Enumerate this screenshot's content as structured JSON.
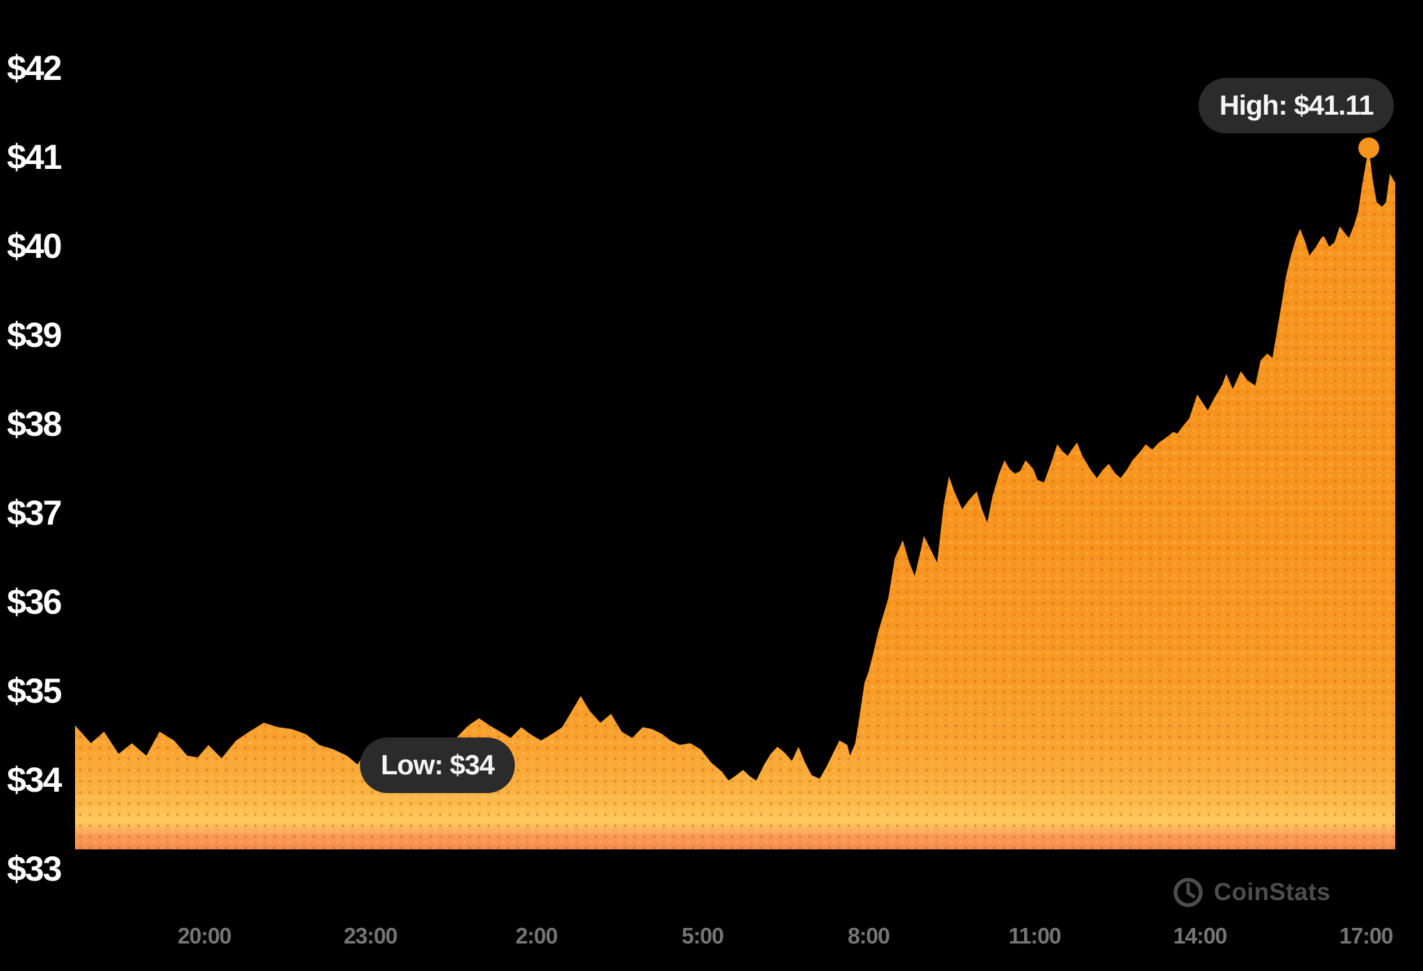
{
  "chart_data": {
    "type": "area",
    "title": "",
    "grid": "off",
    "legend": "off",
    "y_axis_range": [
      33,
      42
    ],
    "y_ticks": [
      "$42",
      "$41",
      "$40",
      "$39",
      "$38",
      "$37",
      "$36",
      "$35",
      "$34",
      "$33"
    ],
    "y_tick_values": [
      42,
      41,
      40,
      39,
      38,
      37,
      36,
      35,
      34,
      33
    ],
    "x_ticks": [
      "20:00",
      "23:00",
      "2:00",
      "5:00",
      "8:00",
      "11:00",
      "14:00",
      "17:00"
    ],
    "high_label": "High: $41.11",
    "high_value": 41.11,
    "low_label": "Low: $34",
    "low_value": 34,
    "series": [
      {
        "name": "price",
        "color": "#F7941E",
        "points": [
          [
            0.0,
            34.62
          ],
          [
            0.012,
            34.42
          ],
          [
            0.022,
            34.55
          ],
          [
            0.033,
            34.3
          ],
          [
            0.043,
            34.42
          ],
          [
            0.054,
            34.28
          ],
          [
            0.064,
            34.55
          ],
          [
            0.075,
            34.45
          ],
          [
            0.085,
            34.28
          ],
          [
            0.093,
            34.26
          ],
          [
            0.101,
            34.4
          ],
          [
            0.111,
            34.25
          ],
          [
            0.122,
            34.45
          ],
          [
            0.132,
            34.55
          ],
          [
            0.143,
            34.65
          ],
          [
            0.154,
            34.6
          ],
          [
            0.164,
            34.58
          ],
          [
            0.175,
            34.52
          ],
          [
            0.185,
            34.4
          ],
          [
            0.196,
            34.35
          ],
          [
            0.206,
            34.28
          ],
          [
            0.214,
            34.18
          ],
          [
            0.219,
            34.3
          ],
          [
            0.227,
            34.05
          ],
          [
            0.235,
            34.1
          ],
          [
            0.243,
            34.0
          ],
          [
            0.251,
            34.12
          ],
          [
            0.259,
            34.06
          ],
          [
            0.267,
            34.18
          ],
          [
            0.274,
            34.26
          ],
          [
            0.282,
            34.35
          ],
          [
            0.29,
            34.5
          ],
          [
            0.298,
            34.62
          ],
          [
            0.306,
            34.7
          ],
          [
            0.314,
            34.62
          ],
          [
            0.322,
            34.55
          ],
          [
            0.33,
            34.48
          ],
          [
            0.338,
            34.6
          ],
          [
            0.345,
            34.52
          ],
          [
            0.353,
            34.45
          ],
          [
            0.361,
            34.52
          ],
          [
            0.369,
            34.6
          ],
          [
            0.377,
            34.8
          ],
          [
            0.383,
            34.95
          ],
          [
            0.39,
            34.78
          ],
          [
            0.398,
            34.65
          ],
          [
            0.406,
            34.75
          ],
          [
            0.414,
            34.55
          ],
          [
            0.422,
            34.48
          ],
          [
            0.43,
            34.6
          ],
          [
            0.437,
            34.58
          ],
          [
            0.445,
            34.52
          ],
          [
            0.451,
            34.45
          ],
          [
            0.458,
            34.4
          ],
          [
            0.466,
            34.42
          ],
          [
            0.474,
            34.35
          ],
          [
            0.482,
            34.2
          ],
          [
            0.49,
            34.1
          ],
          [
            0.495,
            34.0
          ],
          [
            0.501,
            34.06
          ],
          [
            0.506,
            34.12
          ],
          [
            0.511,
            34.05
          ],
          [
            0.516,
            34.0
          ],
          [
            0.522,
            34.18
          ],
          [
            0.527,
            34.3
          ],
          [
            0.532,
            34.38
          ],
          [
            0.537,
            34.32
          ],
          [
            0.543,
            34.22
          ],
          [
            0.548,
            34.38
          ],
          [
            0.553,
            34.2
          ],
          [
            0.558,
            34.06
          ],
          [
            0.564,
            34.02
          ],
          [
            0.569,
            34.15
          ],
          [
            0.574,
            34.3
          ],
          [
            0.579,
            34.45
          ],
          [
            0.585,
            34.4
          ],
          [
            0.587,
            34.28
          ],
          [
            0.591,
            34.42
          ],
          [
            0.594,
            34.7
          ],
          [
            0.598,
            35.1
          ],
          [
            0.601,
            35.22
          ],
          [
            0.605,
            35.45
          ],
          [
            0.608,
            35.65
          ],
          [
            0.612,
            35.85
          ],
          [
            0.616,
            36.05
          ],
          [
            0.621,
            36.5
          ],
          [
            0.627,
            36.7
          ],
          [
            0.632,
            36.45
          ],
          [
            0.636,
            36.3
          ],
          [
            0.64,
            36.55
          ],
          [
            0.643,
            36.75
          ],
          [
            0.648,
            36.6
          ],
          [
            0.653,
            36.45
          ],
          [
            0.658,
            37.1
          ],
          [
            0.662,
            37.42
          ],
          [
            0.666,
            37.25
          ],
          [
            0.672,
            37.05
          ],
          [
            0.677,
            37.15
          ],
          [
            0.683,
            37.25
          ],
          [
            0.687,
            37.05
          ],
          [
            0.691,
            36.9
          ],
          [
            0.695,
            37.2
          ],
          [
            0.7,
            37.45
          ],
          [
            0.704,
            37.6
          ],
          [
            0.708,
            37.5
          ],
          [
            0.712,
            37.45
          ],
          [
            0.716,
            37.48
          ],
          [
            0.72,
            37.6
          ],
          [
            0.726,
            37.5
          ],
          [
            0.729,
            37.38
          ],
          [
            0.734,
            37.35
          ],
          [
            0.74,
            37.6
          ],
          [
            0.744,
            37.78
          ],
          [
            0.748,
            37.7
          ],
          [
            0.752,
            37.65
          ],
          [
            0.755,
            37.72
          ],
          [
            0.759,
            37.8
          ],
          [
            0.763,
            37.65
          ],
          [
            0.769,
            37.5
          ],
          [
            0.774,
            37.4
          ],
          [
            0.779,
            37.5
          ],
          [
            0.783,
            37.56
          ],
          [
            0.788,
            37.45
          ],
          [
            0.792,
            37.4
          ],
          [
            0.797,
            37.5
          ],
          [
            0.801,
            37.6
          ],
          [
            0.807,
            37.7
          ],
          [
            0.811,
            37.78
          ],
          [
            0.816,
            37.72
          ],
          [
            0.821,
            37.8
          ],
          [
            0.826,
            37.85
          ],
          [
            0.832,
            37.92
          ],
          [
            0.835,
            37.9
          ],
          [
            0.84,
            38.0
          ],
          [
            0.844,
            38.07
          ],
          [
            0.848,
            38.25
          ],
          [
            0.85,
            38.34
          ],
          [
            0.854,
            38.25
          ],
          [
            0.858,
            38.16
          ],
          [
            0.863,
            38.3
          ],
          [
            0.869,
            38.45
          ],
          [
            0.872,
            38.57
          ],
          [
            0.877,
            38.4
          ],
          [
            0.883,
            38.6
          ],
          [
            0.888,
            38.5
          ],
          [
            0.894,
            38.44
          ],
          [
            0.898,
            38.72
          ],
          [
            0.903,
            38.8
          ],
          [
            0.907,
            38.75
          ],
          [
            0.911,
            39.1
          ],
          [
            0.915,
            39.45
          ],
          [
            0.917,
            39.65
          ],
          [
            0.921,
            39.9
          ],
          [
            0.925,
            40.1
          ],
          [
            0.928,
            40.2
          ],
          [
            0.932,
            40.05
          ],
          [
            0.935,
            39.9
          ],
          [
            0.94,
            40.0
          ],
          [
            0.944,
            40.1
          ],
          [
            0.946,
            40.12
          ],
          [
            0.95,
            40.0
          ],
          [
            0.954,
            40.05
          ],
          [
            0.958,
            40.23
          ],
          [
            0.962,
            40.15
          ],
          [
            0.965,
            40.1
          ],
          [
            0.969,
            40.25
          ],
          [
            0.972,
            40.4
          ],
          [
            0.975,
            40.7
          ],
          [
            0.978,
            40.95
          ],
          [
            0.98,
            41.11
          ],
          [
            0.983,
            40.75
          ],
          [
            0.986,
            40.5
          ],
          [
            0.99,
            40.45
          ],
          [
            0.993,
            40.5
          ],
          [
            0.996,
            40.82
          ],
          [
            1.0,
            40.72
          ]
        ]
      }
    ]
  },
  "watermark": {
    "text": "CoinStats",
    "icon": "clock-icon"
  },
  "colors": {
    "background": "#000000",
    "area": "#F7941E",
    "tooltip_bg": "#2B2B2B",
    "tooltip_text": "#F5F5F5",
    "y_label": "#FFFFFF",
    "x_label": "#757575",
    "watermark": "#4E4E4E"
  }
}
